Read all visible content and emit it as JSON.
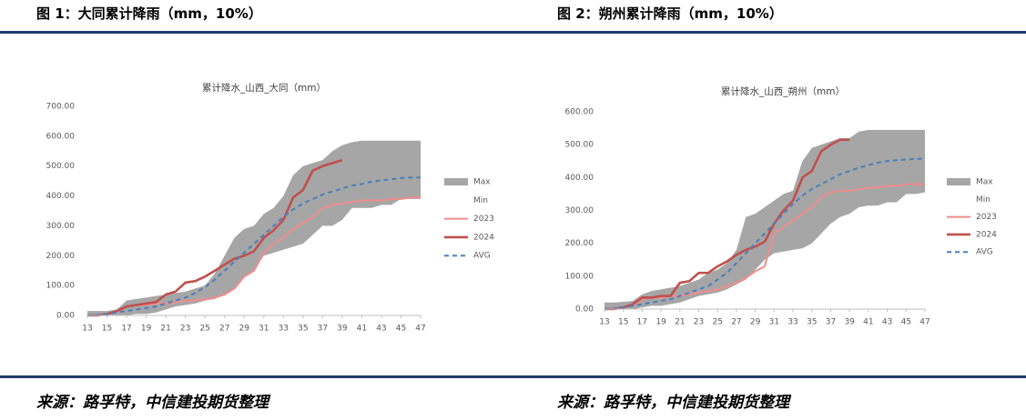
{
  "header": {
    "fig1": "图 1：大同累计降雨（mm，10%）",
    "fig2": "图 2：朔州累计降雨（mm，10%）"
  },
  "footer": {
    "source1": "来源：路孚特，中信建投期货整理",
    "source2": "来源：路孚特，中信建投期货整理"
  },
  "chart_data": [
    {
      "type": "line",
      "title": "累计降水_山西_大同（mm）",
      "x": [
        13,
        14,
        15,
        16,
        17,
        18,
        19,
        20,
        21,
        22,
        23,
        24,
        25,
        26,
        27,
        28,
        29,
        30,
        31,
        32,
        33,
        34,
        35,
        36,
        37,
        38,
        39,
        40,
        41,
        42,
        43,
        44,
        45,
        46,
        47
      ],
      "xlim": [
        13,
        47
      ],
      "xticks": [
        13,
        15,
        17,
        19,
        21,
        23,
        25,
        27,
        29,
        31,
        33,
        35,
        37,
        39,
        41,
        43,
        45,
        47
      ],
      "ylim": [
        0,
        700
      ],
      "yticks": [
        {
          "value": 0,
          "label": "0.00"
        },
        {
          "value": 100,
          "label": "100.00"
        },
        {
          "value": 200,
          "label": "200.00"
        },
        {
          "value": 300,
          "label": "300.00"
        },
        {
          "value": 400,
          "label": "400.00"
        },
        {
          "value": 500,
          "label": "500.00"
        },
        {
          "value": 600,
          "label": "600.00"
        },
        {
          "value": 700,
          "label": "700.00"
        }
      ],
      "grid": false,
      "legend": "right",
      "series": [
        {
          "name": "Max",
          "kind": "area",
          "color": "#a6a6a6",
          "values": [
            15,
            15,
            15,
            20,
            50,
            55,
            60,
            65,
            70,
            75,
            80,
            90,
            100,
            140,
            200,
            260,
            290,
            300,
            340,
            360,
            400,
            470,
            500,
            510,
            520,
            550,
            570,
            580,
            585,
            585,
            585,
            585,
            585,
            585,
            585
          ]
        },
        {
          "name": "Min",
          "kind": "area",
          "color": "#ffffff",
          "values": [
            0,
            0,
            0,
            0,
            0,
            5,
            5,
            10,
            20,
            30,
            35,
            40,
            50,
            55,
            70,
            90,
            130,
            150,
            200,
            210,
            220,
            230,
            240,
            270,
            300,
            300,
            320,
            360,
            360,
            360,
            370,
            370,
            390,
            390,
            390
          ]
        },
        {
          "name": "2023",
          "kind": "line",
          "color": "#f08c8c",
          "values": [
            0,
            0,
            5,
            10,
            30,
            35,
            35,
            40,
            40,
            45,
            50,
            50,
            55,
            60,
            70,
            90,
            130,
            150,
            210,
            240,
            260,
            290,
            310,
            330,
            360,
            370,
            375,
            380,
            385,
            385,
            385,
            390,
            390,
            395,
            395
          ]
        },
        {
          "name": "2024",
          "kind": "line",
          "color": "#c0504d",
          "values": [
            0,
            0,
            5,
            15,
            30,
            35,
            40,
            45,
            70,
            80,
            110,
            115,
            130,
            150,
            170,
            190,
            200,
            215,
            260,
            285,
            320,
            395,
            420,
            485,
            500,
            510,
            520,
            null,
            null,
            null,
            null,
            null,
            null,
            null,
            null
          ]
        },
        {
          "name": "AVG",
          "kind": "line",
          "dash": true,
          "color": "#4a7ebb",
          "values": [
            0,
            2,
            5,
            10,
            15,
            20,
            25,
            30,
            40,
            50,
            60,
            75,
            95,
            120,
            150,
            180,
            210,
            240,
            270,
            300,
            330,
            355,
            375,
            390,
            405,
            415,
            425,
            435,
            440,
            448,
            452,
            456,
            460,
            462,
            462
          ]
        }
      ]
    },
    {
      "type": "line",
      "title": "累计降水_山西_朔州（mm）",
      "x": [
        13,
        14,
        15,
        16,
        17,
        18,
        19,
        20,
        21,
        22,
        23,
        24,
        25,
        26,
        27,
        28,
        29,
        30,
        31,
        32,
        33,
        34,
        35,
        36,
        37,
        38,
        39,
        40,
        41,
        42,
        43,
        44,
        45,
        46,
        47
      ],
      "xlim": [
        13,
        47
      ],
      "xticks": [
        13,
        15,
        17,
        19,
        21,
        23,
        25,
        27,
        29,
        31,
        33,
        35,
        37,
        39,
        41,
        43,
        45,
        47
      ],
      "ylim": [
        0,
        600
      ],
      "yticks": [
        {
          "value": 0,
          "label": "0.00"
        },
        {
          "value": 100,
          "label": "100.00"
        },
        {
          "value": 200,
          "label": "200.00"
        },
        {
          "value": 300,
          "label": "300.00"
        },
        {
          "value": 400,
          "label": "400.00"
        },
        {
          "value": 500,
          "label": "500.00"
        },
        {
          "value": 600,
          "label": "600.00"
        }
      ],
      "grid": false,
      "legend": "right",
      "series": [
        {
          "name": "Max",
          "kind": "area",
          "color": "#a6a6a6",
          "values": [
            20,
            20,
            22,
            25,
            45,
            55,
            60,
            65,
            70,
            80,
            90,
            110,
            120,
            140,
            180,
            280,
            290,
            310,
            330,
            350,
            360,
            450,
            490,
            500,
            510,
            520,
            520,
            540,
            545,
            545,
            545,
            545,
            545,
            545,
            545
          ]
        },
        {
          "name": "Min",
          "kind": "area",
          "color": "#ffffff",
          "values": [
            0,
            0,
            0,
            0,
            5,
            10,
            10,
            15,
            20,
            30,
            40,
            45,
            50,
            60,
            75,
            90,
            120,
            150,
            170,
            175,
            180,
            185,
            200,
            230,
            260,
            280,
            290,
            310,
            315,
            315,
            325,
            325,
            350,
            350,
            355
          ]
        },
        {
          "name": "2023",
          "kind": "line",
          "color": "#f08c8c",
          "values": [
            0,
            0,
            5,
            10,
            30,
            35,
            35,
            40,
            40,
            45,
            50,
            55,
            60,
            70,
            80,
            95,
            115,
            130,
            230,
            250,
            270,
            290,
            310,
            340,
            355,
            360,
            360,
            365,
            370,
            370,
            375,
            375,
            380,
            380,
            380
          ]
        },
        {
          "name": "2024",
          "kind": "line",
          "color": "#c0504d",
          "values": [
            0,
            0,
            5,
            15,
            35,
            35,
            40,
            40,
            80,
            85,
            110,
            110,
            130,
            145,
            165,
            180,
            190,
            205,
            260,
            300,
            330,
            400,
            420,
            480,
            500,
            515,
            515,
            null,
            null,
            null,
            null,
            null,
            null,
            null,
            null
          ]
        },
        {
          "name": "AVG",
          "kind": "line",
          "dash": true,
          "color": "#4a7ebb",
          "values": [
            0,
            2,
            5,
            10,
            15,
            20,
            25,
            30,
            40,
            50,
            60,
            70,
            90,
            110,
            140,
            170,
            200,
            230,
            260,
            290,
            320,
            345,
            365,
            380,
            395,
            410,
            420,
            430,
            438,
            445,
            450,
            453,
            455,
            457,
            457
          ]
        }
      ]
    }
  ]
}
